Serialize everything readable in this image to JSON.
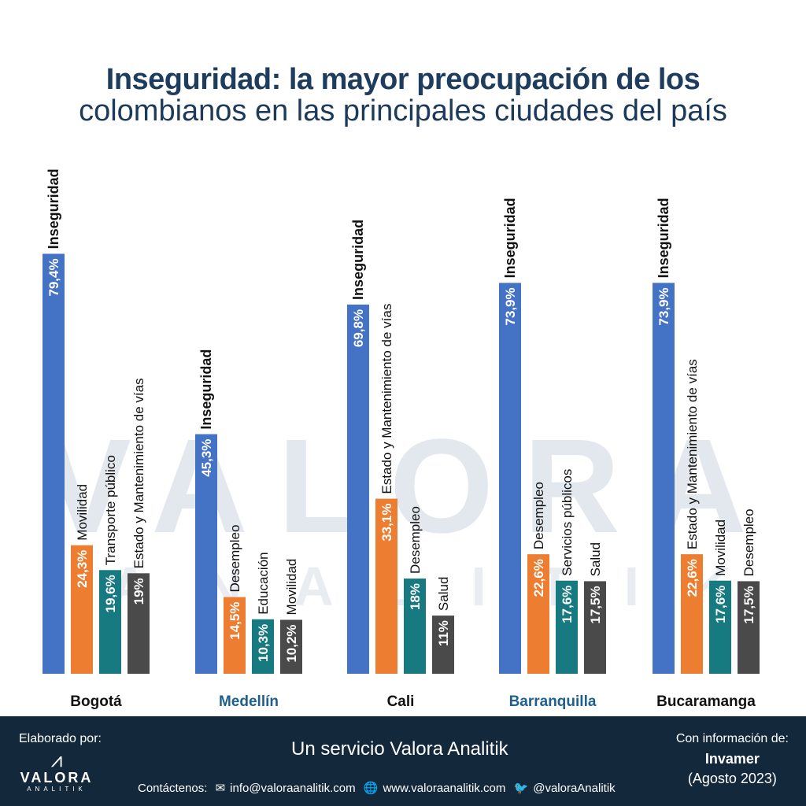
{
  "title": {
    "line1": "Inseguridad: la mayor preocupación de los",
    "line2": "colombianos en las principales ciudades del país"
  },
  "watermark": {
    "main": "VALORA",
    "sub": "ANALITIK"
  },
  "colors": {
    "blue": "#4472c4",
    "orange": "#ed7d31",
    "teal": "#167a80",
    "gray": "#4a4a4a",
    "city_dark": "#111111",
    "city_blue": "#1f5f8b"
  },
  "chart_data": {
    "type": "bar",
    "title": "Inseguridad: la mayor preocupación de los colombianos en las principales ciudades del país",
    "ylim": [
      0,
      100
    ],
    "groups": [
      {
        "city": "Bogotá",
        "city_color": "dark",
        "bars": [
          {
            "label": "Inseguridad",
            "value": 79.4,
            "display": "79,4%",
            "color": "blue"
          },
          {
            "label": "Movilidad",
            "value": 24.3,
            "display": "24,3%",
            "color": "orange"
          },
          {
            "label": "Transporte público",
            "value": 19.6,
            "display": "19,6%",
            "color": "teal"
          },
          {
            "label": "Estado y Mantenimiento de vías",
            "value": 19,
            "display": "19%",
            "color": "gray"
          }
        ]
      },
      {
        "city": "Medellín",
        "city_color": "blue",
        "bars": [
          {
            "label": "Inseguridad",
            "value": 45.3,
            "display": "45,3%",
            "color": "blue"
          },
          {
            "label": "Desempleo",
            "value": 14.5,
            "display": "14,5%",
            "color": "orange"
          },
          {
            "label": "Educación",
            "value": 10.3,
            "display": "10,3%",
            "color": "teal"
          },
          {
            "label": "Movilidad",
            "value": 10.2,
            "display": "10,2%",
            "color": "gray"
          }
        ]
      },
      {
        "city": "Cali",
        "city_color": "dark",
        "bars": [
          {
            "label": "Inseguridad",
            "value": 69.8,
            "display": "69,8%",
            "color": "blue"
          },
          {
            "label": "Estado y Mantenimiento de vías",
            "value": 33.1,
            "display": "33,1%",
            "color": "orange"
          },
          {
            "label": "Desempleo",
            "value": 18,
            "display": "18%",
            "color": "teal"
          },
          {
            "label": "Salud",
            "value": 11,
            "display": "11%",
            "color": "gray"
          }
        ]
      },
      {
        "city": "Barranquilla",
        "city_color": "blue",
        "bars": [
          {
            "label": "Inseguridad",
            "value": 73.9,
            "display": "73,9%",
            "color": "blue"
          },
          {
            "label": "Desempleo",
            "value": 22.6,
            "display": "22,6%",
            "color": "orange"
          },
          {
            "label": "Servicios públicos",
            "value": 17.6,
            "display": "17,6%",
            "color": "teal"
          },
          {
            "label": "Salud",
            "value": 17.5,
            "display": "17,5%",
            "color": "gray"
          }
        ]
      },
      {
        "city": "Bucaramanga",
        "city_color": "dark",
        "bars": [
          {
            "label": "Inseguridad",
            "value": 73.9,
            "display": "73,9%",
            "color": "blue"
          },
          {
            "label": "Estado y Mantenimiento de vías",
            "value": 22.6,
            "display": "22,6%",
            "color": "orange"
          },
          {
            "label": "Movilidad",
            "value": 17.6,
            "display": "17,6%",
            "color": "teal"
          },
          {
            "label": "Desempleo",
            "value": 17.5,
            "display": "17,5%",
            "color": "gray"
          }
        ]
      }
    ]
  },
  "footer": {
    "elaborated_by": "Elaborado por:",
    "logo_word": "VALORA",
    "logo_sub": "ANALITIK",
    "service": "Un servicio Valora Analitik",
    "contact_label": "Contáctenos:",
    "email": "info@valoraanalitik.com",
    "website": "www.valoraanalitik.com",
    "twitter": "@valoraAnalitik",
    "source_label": "Con información de:",
    "source_name": "Invamer",
    "source_date": "(Agosto 2023)",
    "icons": [
      "mail-icon",
      "globe-icon",
      "twitter-icon"
    ]
  }
}
